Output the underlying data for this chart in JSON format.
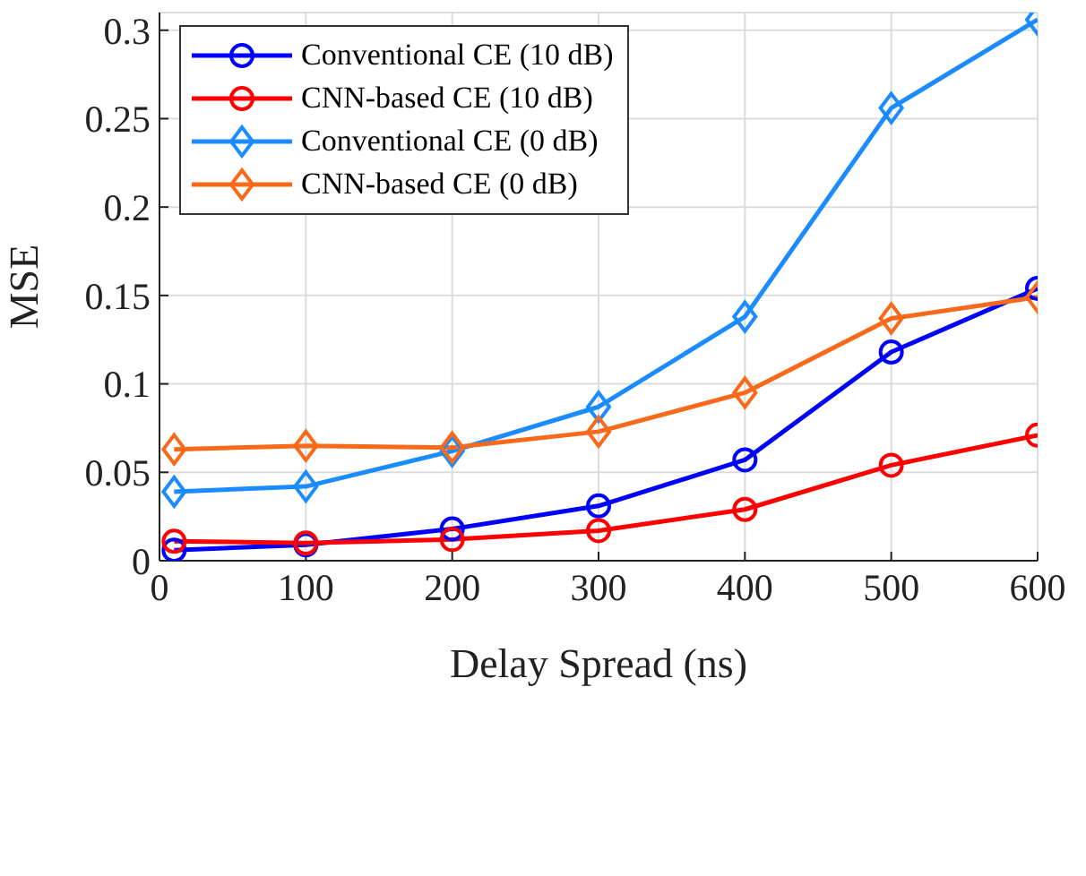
{
  "chart_data": {
    "type": "line",
    "xlabel": "Delay Spread (ns)",
    "ylabel": "MSE",
    "x": [
      10,
      100,
      200,
      300,
      400,
      500,
      600
    ],
    "xlim": [
      0,
      600
    ],
    "xticks": [
      0,
      100,
      200,
      300,
      400,
      500,
      600
    ],
    "ylim": [
      0,
      0.31
    ],
    "yticks": [
      0,
      0.05,
      0.1,
      0.15,
      0.2,
      0.25,
      0.3
    ],
    "grid": true,
    "legend": "top left",
    "line_style": "solid",
    "series": [
      {
        "name": "Conventional CE (10 dB)",
        "color": "#0000ff",
        "marker": "circle",
        "values": [
          0.006,
          0.009,
          0.018,
          0.031,
          0.057,
          0.118,
          0.154
        ]
      },
      {
        "name": "CNN-based CE (10 dB)",
        "color": "#ff0000",
        "marker": "circle",
        "values": [
          0.011,
          0.01,
          0.012,
          0.017,
          0.029,
          0.054,
          0.071
        ]
      },
      {
        "name": "Conventional CE (0 dB)",
        "color": "#1a8cff",
        "marker": "diamond",
        "values": [
          0.039,
          0.042,
          0.062,
          0.087,
          0.138,
          0.256,
          0.306
        ]
      },
      {
        "name": "CNN-based CE (0 dB)",
        "color": "#f86a1a",
        "marker": "diamond",
        "values": [
          0.063,
          0.065,
          0.064,
          0.073,
          0.095,
          0.137,
          0.149
        ]
      }
    ]
  }
}
